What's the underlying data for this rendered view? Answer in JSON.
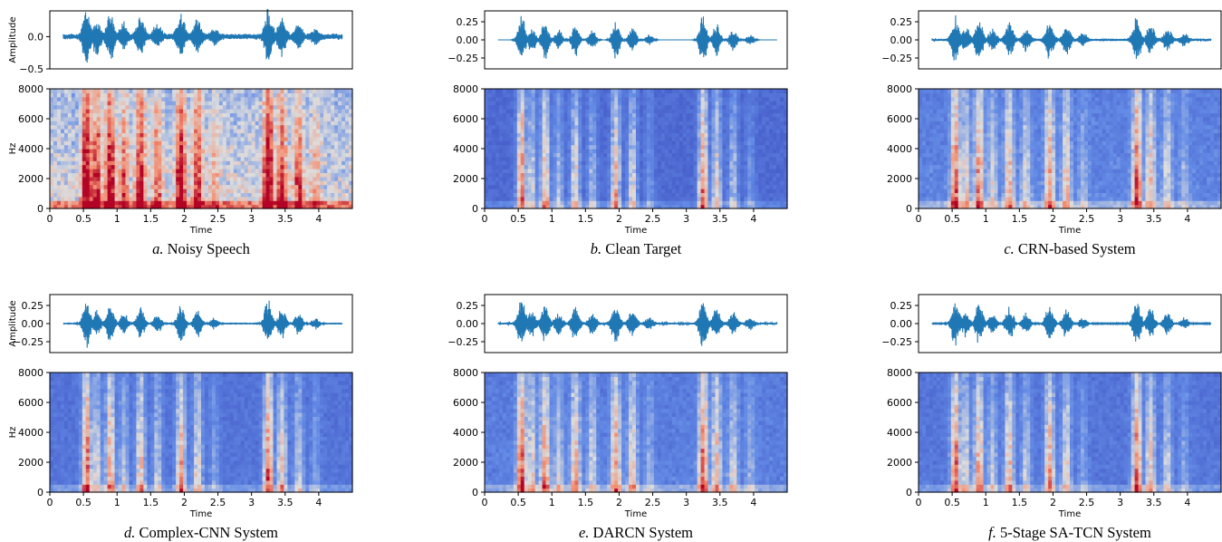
{
  "chart_data": [
    {
      "type": "waveform+spectrogram",
      "panel_letter": "a.",
      "caption": "Noisy Speech",
      "waveform": {
        "ylabel": "Amplitude",
        "ylim": [
          -0.5,
          0.4
        ],
        "yticks": [
          {
            "value": 0.0,
            "label": "0.0"
          },
          {
            "value": -0.5,
            "label": "−0.5"
          }
        ],
        "xlim": [
          0,
          4.5
        ],
        "signal_range": [
          0.2,
          4.35
        ],
        "noise_floor": 0.05,
        "envelope": [
          {
            "t": 0.55,
            "a": 0.45
          },
          {
            "t": 0.7,
            "a": 0.28
          },
          {
            "t": 0.9,
            "a": 0.37
          },
          {
            "t": 1.1,
            "a": 0.2
          },
          {
            "t": 1.35,
            "a": 0.33
          },
          {
            "t": 1.6,
            "a": 0.2
          },
          {
            "t": 1.95,
            "a": 0.38
          },
          {
            "t": 2.2,
            "a": 0.28
          },
          {
            "t": 2.45,
            "a": 0.12
          },
          {
            "t": 3.25,
            "a": 0.44
          },
          {
            "t": 3.45,
            "a": 0.3
          },
          {
            "t": 3.7,
            "a": 0.22
          },
          {
            "t": 3.95,
            "a": 0.12
          }
        ]
      },
      "spectrogram": {
        "ylabel": "Hz",
        "xlabel": "Time",
        "ylim": [
          0,
          8000
        ],
        "xlim": [
          0,
          4.5
        ],
        "yticks": [
          0,
          2000,
          4000,
          6000,
          8000
        ],
        "xticks": [
          0,
          0.5,
          1,
          1.5,
          2,
          2.5,
          3,
          3.5,
          4
        ],
        "xticklabels": [
          "0",
          "0.5",
          "1",
          "1.5",
          "2",
          "2.5",
          "3",
          "3.5",
          "4"
        ],
        "noise_level": 0.42
      }
    },
    {
      "type": "waveform+spectrogram",
      "panel_letter": "b.",
      "caption": "Clean Target",
      "waveform": {
        "ylabel": "",
        "ylim": [
          -0.4,
          0.4
        ],
        "yticks": [
          {
            "value": 0.25,
            "label": "0.25"
          },
          {
            "value": 0.0,
            "label": "0.00"
          },
          {
            "value": -0.25,
            "label": "−0.25"
          }
        ],
        "xlim": [
          0,
          4.5
        ],
        "signal_range": [
          0.2,
          4.35
        ],
        "noise_floor": 0.0,
        "envelope": [
          {
            "t": 0.55,
            "a": 0.37
          },
          {
            "t": 0.7,
            "a": 0.2
          },
          {
            "t": 0.9,
            "a": 0.3
          },
          {
            "t": 1.1,
            "a": 0.16
          },
          {
            "t": 1.35,
            "a": 0.26
          },
          {
            "t": 1.6,
            "a": 0.16
          },
          {
            "t": 1.95,
            "a": 0.3
          },
          {
            "t": 2.2,
            "a": 0.22
          },
          {
            "t": 2.45,
            "a": 0.09
          },
          {
            "t": 3.25,
            "a": 0.36
          },
          {
            "t": 3.45,
            "a": 0.24
          },
          {
            "t": 3.7,
            "a": 0.17
          },
          {
            "t": 3.95,
            "a": 0.09
          }
        ]
      },
      "spectrogram": {
        "ylabel": "",
        "xlabel": "Time",
        "ylim": [
          0,
          8000
        ],
        "xlim": [
          0,
          4.5
        ],
        "yticks": [
          0,
          2000,
          4000,
          6000,
          8000
        ],
        "xticks": [
          0,
          0.5,
          1,
          1.5,
          2,
          2.5,
          3,
          3.5,
          4
        ],
        "xticklabels": [
          "0",
          "0.5",
          "1",
          "1.5",
          "2",
          "2.5",
          "3",
          "3.5",
          "4"
        ],
        "noise_level": 0.0
      }
    },
    {
      "type": "waveform+spectrogram",
      "panel_letter": "c.",
      "caption": "CRN-based System",
      "waveform": {
        "ylabel": "",
        "ylim": [
          -0.4,
          0.4
        ],
        "yticks": [
          {
            "value": 0.25,
            "label": "0.25"
          },
          {
            "value": 0.0,
            "label": "0.00"
          },
          {
            "value": -0.25,
            "label": "−0.25"
          }
        ],
        "xlim": [
          0,
          4.5
        ],
        "signal_range": [
          0.2,
          4.35
        ],
        "noise_floor": 0.02,
        "envelope": [
          {
            "t": 0.55,
            "a": 0.36
          },
          {
            "t": 0.7,
            "a": 0.2
          },
          {
            "t": 0.9,
            "a": 0.3
          },
          {
            "t": 1.1,
            "a": 0.16
          },
          {
            "t": 1.35,
            "a": 0.26
          },
          {
            "t": 1.6,
            "a": 0.16
          },
          {
            "t": 1.95,
            "a": 0.3
          },
          {
            "t": 2.2,
            "a": 0.22
          },
          {
            "t": 2.45,
            "a": 0.09
          },
          {
            "t": 3.25,
            "a": 0.36
          },
          {
            "t": 3.45,
            "a": 0.24
          },
          {
            "t": 3.7,
            "a": 0.17
          },
          {
            "t": 3.95,
            "a": 0.09
          }
        ]
      },
      "spectrogram": {
        "ylabel": "",
        "xlabel": "Time",
        "ylim": [
          0,
          8000
        ],
        "xlim": [
          0,
          4.5
        ],
        "yticks": [
          0,
          2000,
          4000,
          6000,
          8000
        ],
        "xticks": [
          0,
          0.5,
          1,
          1.5,
          2,
          2.5,
          3,
          3.5,
          4
        ],
        "xticklabels": [
          "0",
          "0.5",
          "1",
          "1.5",
          "2",
          "2.5",
          "3",
          "3.5",
          "4"
        ],
        "noise_level": 0.12
      }
    },
    {
      "type": "waveform+spectrogram",
      "panel_letter": "d.",
      "caption": "Complex-CNN System",
      "waveform": {
        "ylabel": "Amplitude",
        "ylim": [
          -0.4,
          0.4
        ],
        "yticks": [
          {
            "value": 0.25,
            "label": "0.25"
          },
          {
            "value": 0.0,
            "label": "0.00"
          },
          {
            "value": -0.25,
            "label": "−0.25"
          }
        ],
        "xlim": [
          0,
          4.5
        ],
        "signal_range": [
          0.2,
          4.35
        ],
        "noise_floor": 0.005,
        "envelope": [
          {
            "t": 0.55,
            "a": 0.37
          },
          {
            "t": 0.7,
            "a": 0.2
          },
          {
            "t": 0.9,
            "a": 0.3
          },
          {
            "t": 1.1,
            "a": 0.16
          },
          {
            "t": 1.35,
            "a": 0.26
          },
          {
            "t": 1.6,
            "a": 0.16
          },
          {
            "t": 1.95,
            "a": 0.3
          },
          {
            "t": 2.2,
            "a": 0.22
          },
          {
            "t": 2.45,
            "a": 0.09
          },
          {
            "t": 3.25,
            "a": 0.36
          },
          {
            "t": 3.45,
            "a": 0.24
          },
          {
            "t": 3.7,
            "a": 0.17
          },
          {
            "t": 3.95,
            "a": 0.09
          }
        ]
      },
      "spectrogram": {
        "ylabel": "Hz",
        "xlabel": "Time",
        "ylim": [
          0,
          8000
        ],
        "xlim": [
          0,
          4.5
        ],
        "yticks": [
          0,
          2000,
          4000,
          6000,
          8000
        ],
        "xticks": [
          0,
          0.5,
          1,
          1.5,
          2,
          2.5,
          3,
          3.5,
          4
        ],
        "xticklabels": [
          "0",
          "0.5",
          "1",
          "1.5",
          "2",
          "2.5",
          "3",
          "3.5",
          "4"
        ],
        "noise_level": 0.05
      }
    },
    {
      "type": "waveform+spectrogram",
      "panel_letter": "e.",
      "caption": "DARCN System",
      "waveform": {
        "ylabel": "",
        "ylim": [
          -0.4,
          0.4
        ],
        "yticks": [
          {
            "value": 0.25,
            "label": "0.25"
          },
          {
            "value": 0.0,
            "label": "0.00"
          },
          {
            "value": -0.25,
            "label": "−0.25"
          }
        ],
        "xlim": [
          0,
          4.5
        ],
        "signal_range": [
          0.2,
          4.35
        ],
        "noise_floor": 0.015,
        "envelope": [
          {
            "t": 0.55,
            "a": 0.37
          },
          {
            "t": 0.7,
            "a": 0.2
          },
          {
            "t": 0.9,
            "a": 0.3
          },
          {
            "t": 1.1,
            "a": 0.16
          },
          {
            "t": 1.35,
            "a": 0.26
          },
          {
            "t": 1.6,
            "a": 0.16
          },
          {
            "t": 1.95,
            "a": 0.3
          },
          {
            "t": 2.2,
            "a": 0.22
          },
          {
            "t": 2.45,
            "a": 0.09
          },
          {
            "t": 3.25,
            "a": 0.36
          },
          {
            "t": 3.45,
            "a": 0.24
          },
          {
            "t": 3.7,
            "a": 0.17
          },
          {
            "t": 3.95,
            "a": 0.09
          }
        ]
      },
      "spectrogram": {
        "ylabel": "",
        "xlabel": "Time",
        "ylim": [
          0,
          8000
        ],
        "xlim": [
          0,
          4.5
        ],
        "yticks": [
          0,
          2000,
          4000,
          6000,
          8000
        ],
        "xticks": [
          0,
          0.5,
          1,
          1.5,
          2,
          2.5,
          3,
          3.5,
          4
        ],
        "xticklabels": [
          "0",
          "0.5",
          "1",
          "1.5",
          "2",
          "2.5",
          "3",
          "3.5",
          "4"
        ],
        "noise_level": 0.1
      }
    },
    {
      "type": "waveform+spectrogram",
      "panel_letter": "f.",
      "caption": "5-Stage SA-TCN System",
      "waveform": {
        "ylabel": "",
        "ylim": [
          -0.4,
          0.4
        ],
        "yticks": [
          {
            "value": 0.25,
            "label": "0.25"
          },
          {
            "value": 0.0,
            "label": "0.00"
          },
          {
            "value": -0.25,
            "label": "−0.25"
          }
        ],
        "xlim": [
          0,
          4.5
        ],
        "signal_range": [
          0.2,
          4.35
        ],
        "noise_floor": 0.008,
        "envelope": [
          {
            "t": 0.55,
            "a": 0.37
          },
          {
            "t": 0.7,
            "a": 0.2
          },
          {
            "t": 0.9,
            "a": 0.3
          },
          {
            "t": 1.1,
            "a": 0.16
          },
          {
            "t": 1.35,
            "a": 0.26
          },
          {
            "t": 1.6,
            "a": 0.16
          },
          {
            "t": 1.95,
            "a": 0.3
          },
          {
            "t": 2.2,
            "a": 0.22
          },
          {
            "t": 2.45,
            "a": 0.09
          },
          {
            "t": 3.25,
            "a": 0.36
          },
          {
            "t": 3.45,
            "a": 0.24
          },
          {
            "t": 3.7,
            "a": 0.17
          },
          {
            "t": 3.95,
            "a": 0.09
          }
        ]
      },
      "spectrogram": {
        "ylabel": "",
        "xlabel": "Time",
        "ylim": [
          0,
          8000
        ],
        "xlim": [
          0,
          4.5
        ],
        "yticks": [
          0,
          2000,
          4000,
          6000,
          8000
        ],
        "xticks": [
          0,
          0.5,
          1,
          1.5,
          2,
          2.5,
          3,
          3.5,
          4
        ],
        "xticklabels": [
          "0",
          "0.5",
          "1",
          "1.5",
          "2",
          "2.5",
          "3",
          "3.5",
          "4"
        ],
        "noise_level": 0.06
      }
    }
  ],
  "colors": {
    "waveform": "#1f77b4",
    "spec_low": "#3b4cc0",
    "spec_mid": "#dddddd",
    "spec_high": "#b40426"
  }
}
